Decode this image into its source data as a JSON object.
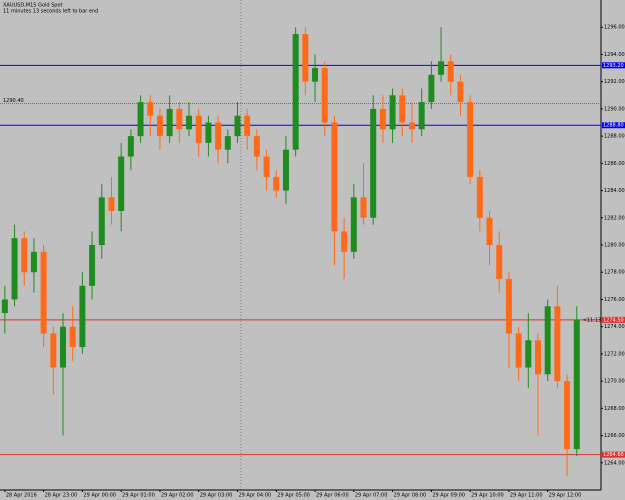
{
  "chart_data": {
    "type": "candlestick",
    "title": "XAUUSD,M15  Gold Spot",
    "subtitle": "11 minutes 13 seconds left to bar end",
    "countdown": "<11:13",
    "categories": [
      "28 Apr 2016",
      null,
      null,
      null,
      "28 Apr 23:00",
      null,
      null,
      null,
      "29 Apr 00:00",
      null,
      null,
      null,
      "29 Apr 01:00",
      null,
      null,
      null,
      "29 Apr 02:00",
      null,
      null,
      null,
      "29 Apr 03:00",
      null,
      null,
      null,
      "29 Apr 04:00",
      null,
      null,
      null,
      "29 Apr 05:00",
      null,
      null,
      null,
      "29 Apr 06:00",
      null,
      null,
      null,
      "29 Apr 07:00",
      null,
      null,
      null,
      "29 Apr 08:00",
      null,
      null,
      null,
      "29 Apr 09:00",
      null,
      null,
      null,
      "29 Apr 10:00",
      null,
      null,
      null,
      "29 Apr 11:00",
      null,
      null,
      null,
      "29 Apr 12:00",
      null,
      null,
      null
    ],
    "open": [
      1275.0,
      1276.0,
      1280.5,
      1278.0,
      1279.5,
      1273.5,
      1271.0,
      1274.0,
      1272.5,
      1277.0,
      1280.0,
      1283.5,
      1282.5,
      1286.5,
      1288.0,
      1290.5,
      1289.5,
      1288.0,
      1290.0,
      1288.5,
      1289.5,
      1287.5,
      1289.0,
      1287.0,
      1288.0,
      1289.5,
      1288.0,
      1286.5,
      1285.0,
      1284.0,
      1287.0,
      1295.5,
      1292.0,
      1293.0,
      1289.0,
      1281.0,
      1279.5,
      1283.5,
      1282.0,
      1290.0,
      1288.5,
      1291.0,
      1289.0,
      1288.5,
      1290.5,
      1292.5,
      1293.5,
      1292.0,
      1290.5,
      1285.0,
      1282.0,
      1280.0,
      1277.5,
      1273.5,
      1271.0,
      1273.0,
      1270.5,
      1275.5,
      1270.0,
      1265.0
    ],
    "high": [
      1277.0,
      1281.5,
      1281.0,
      1280.5,
      1280.0,
      1274.0,
      1275.0,
      1275.5,
      1278.0,
      1281.0,
      1284.5,
      1285.0,
      1287.5,
      1288.5,
      1291.0,
      1291.0,
      1290.0,
      1291.0,
      1290.5,
      1290.5,
      1290.0,
      1289.5,
      1289.5,
      1288.5,
      1290.5,
      1290.0,
      1288.5,
      1287.0,
      1285.5,
      1288.0,
      1296.0,
      1296.0,
      1294.0,
      1293.5,
      1289.5,
      1282.0,
      1284.5,
      1286.0,
      1291.0,
      1291.0,
      1291.5,
      1291.5,
      1290.5,
      1291.5,
      1293.5,
      1296.0,
      1294.0,
      1292.5,
      1291.0,
      1285.5,
      1282.5,
      1281.0,
      1278.0,
      1274.0,
      1275.0,
      1273.5,
      1276.0,
      1277.0,
      1270.5,
      1275.5
    ],
    "low": [
      1273.5,
      1275.5,
      1277.0,
      1276.5,
      1272.5,
      1269.0,
      1266.0,
      1271.5,
      1272.0,
      1276.0,
      1279.0,
      1281.5,
      1281.0,
      1285.5,
      1287.5,
      1288.0,
      1287.0,
      1287.5,
      1287.5,
      1288.0,
      1286.5,
      1286.5,
      1286.0,
      1286.0,
      1287.5,
      1287.0,
      1285.5,
      1284.0,
      1283.5,
      1283.0,
      1286.5,
      1291.0,
      1290.5,
      1288.0,
      1278.5,
      1277.5,
      1279.0,
      1281.5,
      1281.5,
      1287.5,
      1287.5,
      1288.0,
      1287.5,
      1288.0,
      1290.0,
      1292.0,
      1291.0,
      1289.5,
      1284.5,
      1281.0,
      1278.5,
      1276.5,
      1271.0,
      1270.0,
      1269.5,
      1266.0,
      1270.0,
      1269.5,
      1263.0,
      1264.5
    ],
    "close": [
      1276.0,
      1280.5,
      1278.0,
      1279.5,
      1273.5,
      1271.0,
      1274.0,
      1272.5,
      1277.0,
      1280.0,
      1283.5,
      1282.5,
      1286.5,
      1288.0,
      1290.5,
      1289.5,
      1288.0,
      1290.0,
      1288.5,
      1289.5,
      1287.5,
      1289.0,
      1287.0,
      1288.0,
      1289.5,
      1288.0,
      1286.5,
      1285.0,
      1284.0,
      1287.0,
      1295.5,
      1292.0,
      1293.0,
      1289.0,
      1281.0,
      1279.5,
      1283.5,
      1282.0,
      1290.0,
      1288.5,
      1291.0,
      1289.0,
      1288.5,
      1290.5,
      1292.5,
      1293.5,
      1292.0,
      1290.5,
      1285.0,
      1282.0,
      1280.0,
      1277.5,
      1273.5,
      1271.0,
      1273.0,
      1270.5,
      1275.5,
      1270.0,
      1265.0,
      1274.5
    ],
    "up_color": "#1e8c1e",
    "down_color": "#ff6a1a",
    "ylim": [
      1262,
      1298
    ],
    "yticks": [
      {
        "value": 1264,
        "label": "1264.00"
      },
      {
        "value": 1266,
        "label": "1266.00"
      },
      {
        "value": 1268,
        "label": "1268.00"
      },
      {
        "value": 1270,
        "label": "1270.00"
      },
      {
        "value": 1272,
        "label": "1272.00"
      },
      {
        "value": 1274,
        "label": "1274.00"
      },
      {
        "value": 1276,
        "label": "1276.00"
      },
      {
        "value": 1278,
        "label": "1278.00"
      },
      {
        "value": 1280,
        "label": "1280.00"
      },
      {
        "value": 1282,
        "label": "1282.00"
      },
      {
        "value": 1284,
        "label": "1284.00"
      },
      {
        "value": 1286,
        "label": "1286.00"
      },
      {
        "value": 1288,
        "label": "1288.00"
      },
      {
        "value": 1290,
        "label": "1290.00"
      },
      {
        "value": 1292,
        "label": "1292.00"
      },
      {
        "value": 1294,
        "label": "1294.00"
      },
      {
        "value": 1296,
        "label": "1296.00"
      }
    ],
    "levels": [
      {
        "value": 1293.2,
        "label": "1293.20",
        "color": "#0000ff",
        "style": "solid"
      },
      {
        "value": 1290.4,
        "label": "1290.40",
        "color": "#707070",
        "style": "dotted"
      },
      {
        "value": 1288.8,
        "label": "1288.80",
        "color": "#0000ff",
        "style": "solid"
      },
      {
        "value": 1274.5,
        "label": "1274.50",
        "color": "#e03030",
        "style": "solid"
      },
      {
        "value": 1264.6,
        "label": "1264.60",
        "color": "#e03030",
        "style": "solid"
      }
    ]
  }
}
